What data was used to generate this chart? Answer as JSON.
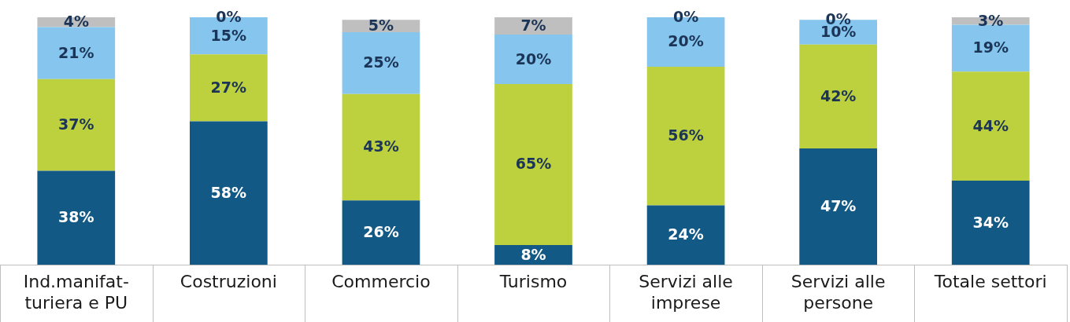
{
  "chart_data": {
    "type": "bar",
    "stacked": true,
    "grid": false,
    "legend": false,
    "categories": [
      "Ind.manifat-turiera e PU",
      "Costruzioni",
      "Commercio",
      "Turismo",
      "Servizi alle imprese",
      "Servizi alle persone",
      "Totale settori"
    ],
    "series": [
      {
        "color": "#135985",
        "values": [
          38,
          58,
          26,
          8,
          24,
          47,
          34
        ],
        "value_labels": [
          "38%",
          "58%",
          "26%",
          "8%",
          "24%",
          "47%",
          "34%"
        ]
      },
      {
        "color": "#bdd03d",
        "values": [
          37,
          27,
          43,
          65,
          56,
          42,
          44
        ],
        "value_labels": [
          "37%",
          "27%",
          "43%",
          "65%",
          "56%",
          "42%",
          "44%"
        ]
      },
      {
        "color": "#85c5ee",
        "values": [
          21,
          15,
          25,
          20,
          20,
          10,
          19
        ],
        "value_labels": [
          "21%",
          "15%",
          "25%",
          "20%",
          "20%",
          "10%",
          "19%"
        ]
      },
      {
        "color": "#bfbfbf",
        "values": [
          4,
          0,
          5,
          7,
          0,
          0,
          3
        ],
        "value_labels": [
          "4%",
          "0%",
          "5%",
          "7%",
          "0%",
          "0%",
          "3%"
        ]
      }
    ]
  }
}
